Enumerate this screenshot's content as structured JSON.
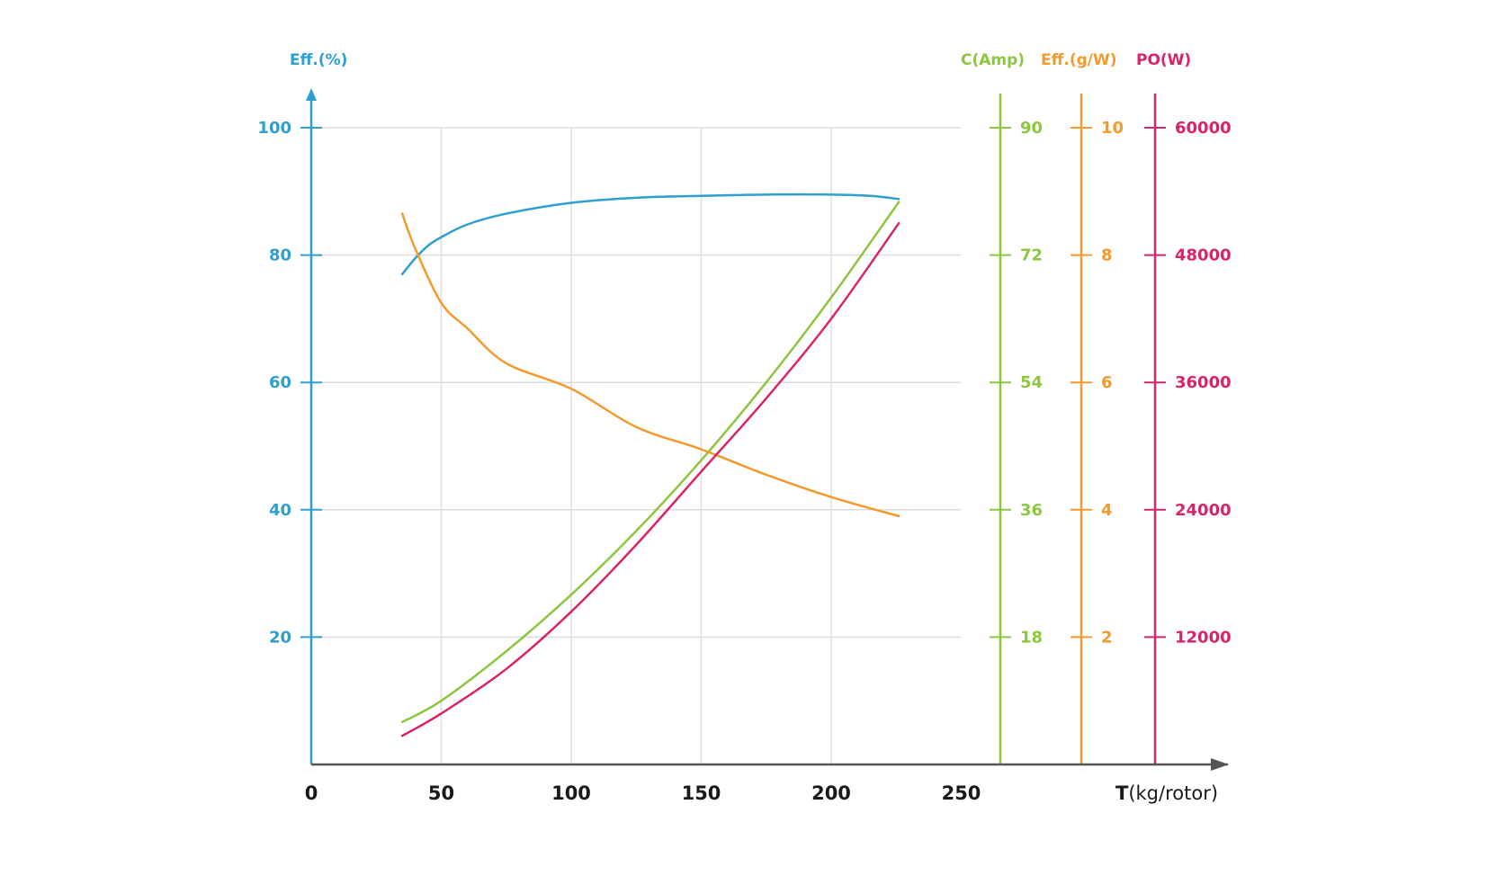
{
  "colors": {
    "blue": "#2f9fd0",
    "green": "#8dc63f",
    "orange": "#f39a2e",
    "magenta": "#d8246a",
    "grid": "#dddddd",
    "axis": "#555555",
    "xtext": "#1a1a1a"
  },
  "chart_data": {
    "type": "line",
    "title": "",
    "xlabel_bold": "T",
    "xlabel_rest": "(kg/rotor)",
    "xlim": [
      0,
      250
    ],
    "x_ticks": [
      "0",
      "50",
      "100",
      "150",
      "200",
      "250"
    ],
    "x_tick_values": [
      0,
      50,
      100,
      150,
      200,
      250
    ],
    "grid": true,
    "axes": [
      {
        "id": "eff_pct",
        "title": "Eff.(%)",
        "position": "left",
        "color": "blue",
        "ylim": [
          0,
          100
        ],
        "ticks": [
          20,
          40,
          60,
          80,
          100
        ],
        "tick_labels": [
          "20",
          "40",
          "60",
          "80",
          "100"
        ]
      },
      {
        "id": "amp",
        "title": "C(Amp)",
        "position": "right",
        "color": "green",
        "ylim": [
          0,
          90
        ],
        "ticks": [
          18,
          36,
          54,
          72,
          90
        ],
        "tick_labels": [
          "18",
          "36",
          "54",
          "72",
          "90"
        ]
      },
      {
        "id": "gw",
        "title": "Eff.(g/W)",
        "position": "right",
        "color": "orange",
        "ylim": [
          0,
          10
        ],
        "ticks": [
          2,
          4,
          6,
          8,
          10
        ],
        "tick_labels": [
          "2",
          "4",
          "6",
          "8",
          "10"
        ]
      },
      {
        "id": "po",
        "title": "PO(W)",
        "position": "right",
        "color": "magenta",
        "ylim": [
          0,
          60000
        ],
        "ticks": [
          12000,
          24000,
          36000,
          48000,
          60000
        ],
        "tick_labels": [
          "12000",
          "24000",
          "36000",
          "48000",
          "60000"
        ]
      }
    ],
    "series": [
      {
        "name": "Eff.(%)",
        "axis": "eff_pct",
        "color": "blue",
        "x": [
          35,
          40,
          45,
          50,
          60,
          75,
          100,
          125,
          150,
          175,
          200,
          215,
          226
        ],
        "y": [
          77,
          79.5,
          81.5,
          82.8,
          84.8,
          86.5,
          88.2,
          89,
          89.3,
          89.5,
          89.5,
          89.3,
          88.8
        ]
      },
      {
        "name": "C(Amp)",
        "axis": "amp",
        "color": "green",
        "x": [
          35,
          50,
          75,
          100,
          125,
          150,
          175,
          200,
          226
        ],
        "y": [
          6,
          9,
          16,
          24,
          33,
          43,
          54,
          66,
          79.5
        ]
      },
      {
        "name": "Eff.(g/W)",
        "axis": "gw",
        "color": "orange",
        "x": [
          35,
          40,
          50,
          60,
          75,
          100,
          125,
          150,
          175,
          200,
          226
        ],
        "y": [
          8.65,
          8.1,
          7.25,
          6.85,
          6.3,
          5.9,
          5.3,
          4.95,
          4.55,
          4.2,
          3.9
        ]
      },
      {
        "name": "PO(W)",
        "axis": "po",
        "color": "magenta",
        "x": [
          35,
          50,
          75,
          100,
          125,
          150,
          175,
          200,
          226
        ],
        "y": [
          2700,
          4800,
          9000,
          14400,
          20700,
          27600,
          34500,
          42000,
          51000
        ]
      }
    ]
  }
}
